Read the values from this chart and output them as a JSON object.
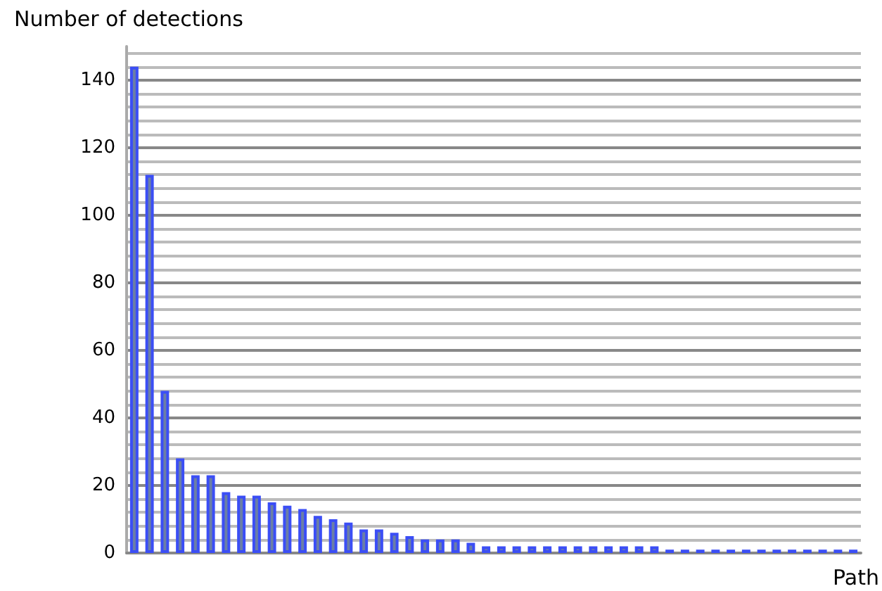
{
  "chart_data": {
    "type": "bar",
    "xlabel": "Path",
    "ylabel": "Number of detections",
    "categories": [
      null,
      null,
      null,
      null,
      null,
      null,
      null,
      null,
      null,
      null,
      null,
      null,
      null,
      null,
      null,
      null,
      null,
      null,
      null,
      null,
      null,
      null,
      null,
      null,
      null,
      null,
      null,
      null,
      null,
      null,
      null,
      null,
      null,
      null,
      null,
      null,
      null,
      null,
      null,
      null,
      null,
      null,
      null,
      null,
      null,
      null,
      null,
      null
    ],
    "values": [
      144,
      112,
      48,
      28,
      23,
      23,
      18,
      17,
      17,
      15,
      14,
      13,
      11,
      10,
      9,
      7,
      7,
      6,
      5,
      4,
      4,
      4,
      3,
      2,
      2,
      2,
      2,
      2,
      2,
      2,
      2,
      2,
      2,
      2,
      2,
      1,
      1,
      1,
      1,
      1,
      1,
      1,
      1,
      1,
      1,
      1,
      1,
      1
    ],
    "color": "#3b4ef5",
    "ylim": [
      0,
      150
    ],
    "yticks": [
      0,
      {
        "value": 4,
        "label": null
      },
      {
        "value": 8,
        "label": null
      },
      {
        "value": 12,
        "label": null
      },
      {
        "value": 16,
        "label": null
      },
      20,
      {
        "value": 24,
        "label": null
      },
      {
        "value": 28,
        "label": null
      },
      {
        "value": 32,
        "label": null
      },
      {
        "value": 36,
        "label": null
      },
      40,
      {
        "value": 44,
        "label": null
      },
      {
        "value": 48,
        "label": null
      },
      {
        "value": 52,
        "label": null
      },
      {
        "value": 56,
        "label": null
      },
      60,
      {
        "value": 64,
        "label": null
      },
      {
        "value": 68,
        "label": null
      },
      {
        "value": 72,
        "label": null
      },
      {
        "value": 76,
        "label": null
      },
      80,
      {
        "value": 84,
        "label": null
      },
      {
        "value": 88,
        "label": null
      },
      {
        "value": 92,
        "label": null
      },
      {
        "value": 96,
        "label": null
      },
      100,
      {
        "value": 104,
        "label": null
      },
      {
        "value": 108,
        "label": null
      },
      {
        "value": 112,
        "label": null
      },
      {
        "value": 116,
        "label": null
      },
      120,
      {
        "value": 124,
        "label": null
      },
      {
        "value": 128,
        "label": null
      },
      {
        "value": 132,
        "label": null
      },
      {
        "value": 136,
        "label": null
      },
      140,
      {
        "value": 144,
        "label": null
      },
      {
        "value": 148,
        "label": null
      }
    ],
    "grid": "y"
  }
}
